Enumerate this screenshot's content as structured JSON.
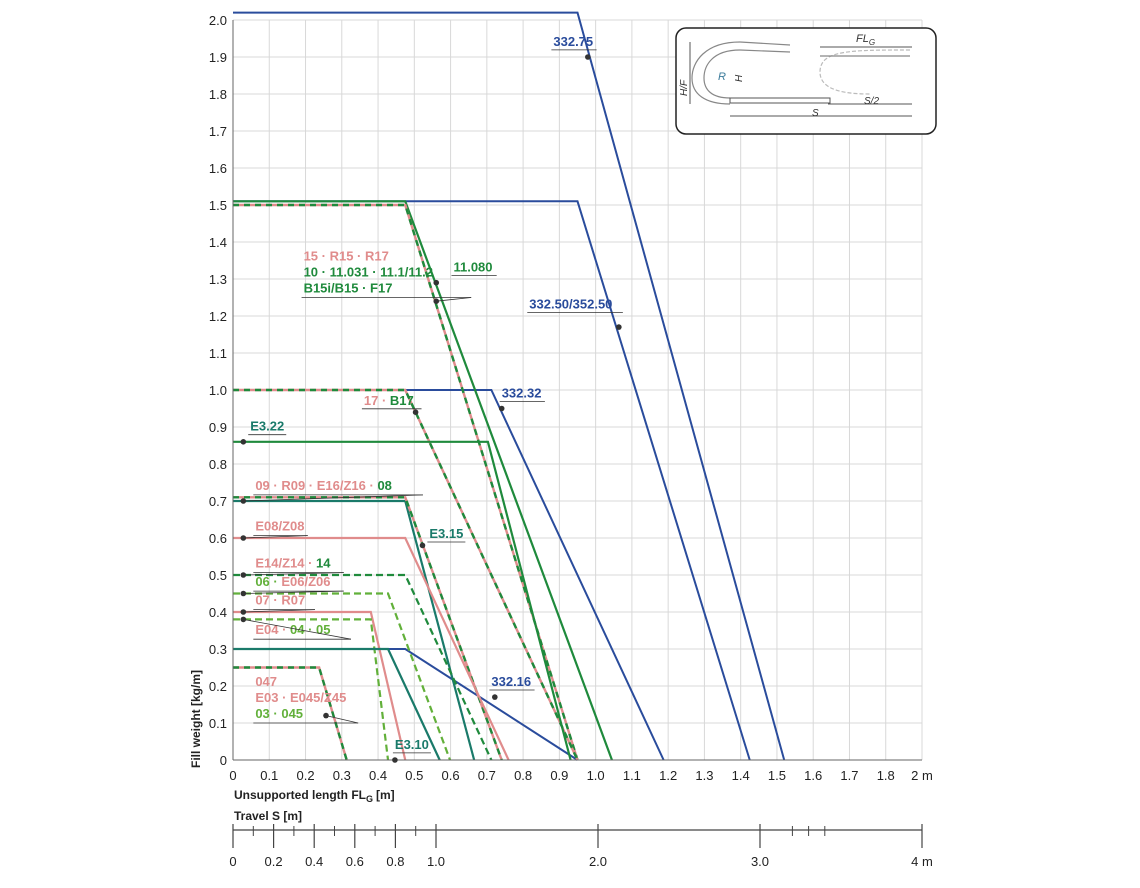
{
  "chart_data": {
    "type": "line",
    "ylabel": "Fill weight [kg/m]",
    "xlabel": "Unsupported length FL",
    "xlabel_subscript": "G",
    "xlabel_unit": "[m]",
    "xlim": [
      0,
      2
    ],
    "ylim": [
      0,
      2
    ],
    "x_ticks": [
      "0",
      "0.1",
      "0.2",
      "0.3",
      "0.4",
      "0.5",
      "0.6",
      "0.7",
      "0.8",
      "0.9",
      "1.0",
      "1.1",
      "1.2",
      "1.3",
      "1.4",
      "1.5",
      "1.6",
      "1.7",
      "1.8",
      "2 m"
    ],
    "y_ticks": [
      "0",
      "0.1",
      "0.2",
      "0.3",
      "0.4",
      "0.5",
      "0.6",
      "0.7",
      "0.8",
      "0.9",
      "1.0",
      "1.1",
      "1.2",
      "1.3",
      "1.4",
      "1.5",
      "1.6",
      "1.7",
      "1.8",
      "1.9",
      "2.0"
    ],
    "travel_axis": {
      "label": "Travel S [m]",
      "ticks": [
        {
          "label": "0",
          "value": 0
        },
        {
          "label": "0.2",
          "value": 0.2
        },
        {
          "label": "0.4",
          "value": 0.4
        },
        {
          "label": "0.6",
          "value": 0.6
        },
        {
          "label": "0.8",
          "value": 0.8
        },
        {
          "label": "1.0",
          "value": 1.0
        },
        {
          "label": "2.0",
          "value": 2.0
        },
        {
          "label": "3.0",
          "value": 3.0
        },
        {
          "label": "4 m",
          "value": 4.0
        }
      ],
      "minor_ticks": [
        0.1,
        0.3,
        0.5,
        0.7,
        0.9,
        3.2,
        3.3,
        3.4
      ]
    },
    "colors": {
      "blue": "#2a4c9c",
      "green": "#1f8a3c",
      "lightgreen": "#62b03a",
      "pink": "#e08c8c",
      "teal": "#1a7a6a"
    },
    "series": [
      {
        "name": "332.75",
        "color": "blue",
        "style": "solid",
        "points": [
          [
            0,
            2.02
          ],
          [
            1.0,
            2.02
          ],
          [
            1.6,
            0
          ]
        ]
      },
      {
        "name": "332.50/352.50",
        "color": "blue",
        "style": "solid",
        "points": [
          [
            0,
            1.51
          ],
          [
            1.0,
            1.51
          ],
          [
            1.5,
            0
          ]
        ]
      },
      {
        "name": "332.32",
        "color": "blue",
        "style": "solid",
        "points": [
          [
            0,
            1.0
          ],
          [
            0.75,
            1.0
          ],
          [
            1.25,
            0
          ]
        ]
      },
      {
        "name": "332.16",
        "color": "blue",
        "style": "solid",
        "points": [
          [
            0,
            0.3
          ],
          [
            0.5,
            0.3
          ],
          [
            1.0,
            0
          ]
        ]
      },
      {
        "name": "11.080",
        "color": "green",
        "style": "solid",
        "points": [
          [
            0,
            1.51
          ],
          [
            0.5,
            1.51
          ],
          [
            1.1,
            0
          ]
        ]
      },
      {
        "name": "15 · R15 · R17 / 10 · 11.031 · 11.1/11.2 / B15i/B15 · F17",
        "color": "pinkgreen",
        "style": "dashed",
        "points": [
          [
            0,
            1.5
          ],
          [
            0.5,
            1.5
          ],
          [
            1.0,
            0
          ]
        ]
      },
      {
        "name": "17 · B17",
        "color": "pinkgreen",
        "style": "dashed",
        "points": [
          [
            0,
            1.0
          ],
          [
            0.5,
            1.0
          ],
          [
            1.0,
            0
          ]
        ]
      },
      {
        "name": "E3.22",
        "color": "green",
        "style": "solid",
        "points": [
          [
            0,
            0.86
          ],
          [
            0.74,
            0.86
          ],
          [
            0.98,
            0
          ]
        ]
      },
      {
        "name": "E3.15",
        "color": "teal",
        "style": "solid",
        "points": [
          [
            0,
            0.7
          ],
          [
            0.5,
            0.7
          ],
          [
            0.7,
            0
          ]
        ]
      },
      {
        "name": "09 · R09 · E16/Z16 · 08",
        "color": "pinkgreen",
        "style": "dashed",
        "points": [
          [
            0,
            0.71
          ],
          [
            0.5,
            0.71
          ],
          [
            0.78,
            0
          ]
        ]
      },
      {
        "name": "E08/Z08",
        "color": "pink",
        "style": "solid",
        "points": [
          [
            0,
            0.6
          ],
          [
            0.5,
            0.6
          ],
          [
            0.8,
            0
          ]
        ]
      },
      {
        "name": "E14/Z14 · 14",
        "color": "green",
        "style": "dashed",
        "points": [
          [
            0,
            0.5
          ],
          [
            0.5,
            0.5
          ],
          [
            0.75,
            0
          ]
        ]
      },
      {
        "name": "06 · E06/Z06",
        "color": "lightgreen",
        "style": "dashed",
        "points": [
          [
            0,
            0.45
          ],
          [
            0.45,
            0.45
          ],
          [
            0.63,
            0
          ]
        ]
      },
      {
        "name": "07 · R07",
        "color": "pink",
        "style": "solid",
        "points": [
          [
            0,
            0.4
          ],
          [
            0.4,
            0.4
          ],
          [
            0.5,
            0
          ]
        ]
      },
      {
        "name": "E04 · 04 · 05",
        "color": "lightgreen",
        "style": "dashed",
        "points": [
          [
            0,
            0.38
          ],
          [
            0.4,
            0.38
          ],
          [
            0.45,
            0
          ]
        ]
      },
      {
        "name": "E3.10",
        "color": "teal",
        "style": "solid",
        "points": [
          [
            0,
            0.3
          ],
          [
            0.45,
            0.3
          ],
          [
            0.6,
            0
          ]
        ]
      },
      {
        "name": "047 / E03 · E045/Z45 / 03 · 045",
        "color": "pinkgreen",
        "style": "dashed",
        "points": [
          [
            0,
            0.25
          ],
          [
            0.25,
            0.25
          ],
          [
            0.33,
            0
          ]
        ]
      }
    ],
    "labels": [
      {
        "text": "332.75",
        "color": "blue",
        "x": 0.93,
        "y": 1.93,
        "marker": [
          1.03,
          1.9
        ]
      },
      {
        "text": "332.50/352.50",
        "color": "blue",
        "x": 0.86,
        "y": 1.22,
        "marker": [
          1.12,
          1.17
        ]
      },
      {
        "text": "332.32",
        "color": "blue",
        "x": 0.78,
        "y": 0.98,
        "marker": [
          0.78,
          0.95
        ]
      },
      {
        "text": "332.16",
        "color": "blue",
        "x": 0.75,
        "y": 0.2,
        "marker": [
          0.76,
          0.17
        ]
      },
      {
        "text": "11.080",
        "color": "green",
        "x": 0.64,
        "y": 1.32,
        "marker": [
          0.59,
          1.29
        ]
      },
      {
        "text": "17 · B17",
        "color": "pinkgreen2",
        "x": 0.38,
        "y": 0.96,
        "marker": [
          0.53,
          0.94
        ]
      },
      {
        "text": "E3.22",
        "color": "teal",
        "x": 0.05,
        "y": 0.89,
        "marker": [
          0.03,
          0.86
        ]
      },
      {
        "text": "E3.15",
        "color": "teal",
        "x": 0.57,
        "y": 0.6,
        "marker": [
          0.55,
          0.58
        ]
      },
      {
        "text": "E3.10",
        "color": "teal",
        "x": 0.47,
        "y": 0.03,
        "marker": [
          0.47,
          0.0
        ]
      }
    ],
    "multi_labels": [
      {
        "x": 0.17,
        "y": 1.35,
        "lines": [
          {
            "text": "15 · R15 · R17",
            "color": "pink"
          },
          {
            "text": "10 · 11.031 · 11.1/11.2",
            "color": "green"
          },
          {
            "text": "B15i/B15 · F17",
            "color": "green"
          }
        ],
        "marker": [
          0.59,
          1.24
        ]
      },
      {
        "x": 0.03,
        "y": 0.73,
        "lines": [
          {
            "text": "09 · R09 · E16/Z16 · ",
            "color": "pink",
            "suffix": "08",
            "suffix_color": "green"
          }
        ],
        "marker": [
          0.03,
          0.7
        ]
      },
      {
        "x": 0.03,
        "y": 0.62,
        "lines": [
          {
            "text": "E08/Z08",
            "color": "pink"
          }
        ],
        "marker": [
          0.03,
          0.6
        ]
      },
      {
        "x": 0.03,
        "y": 0.52,
        "lines": [
          {
            "text": "E14/Z14 · ",
            "color": "pink",
            "suffix": "14",
            "suffix_color": "green"
          }
        ],
        "marker": [
          0.03,
          0.5
        ]
      },
      {
        "x": 0.03,
        "y": 0.47,
        "lines": [
          {
            "text": "06 · ",
            "color": "lightgreen",
            "suffix": "E06/Z06",
            "suffix_color": "pink"
          }
        ],
        "marker": [
          0.03,
          0.45
        ]
      },
      {
        "x": 0.03,
        "y": 0.42,
        "lines": [
          {
            "text": "07 · R07",
            "color": "pink"
          }
        ],
        "marker": [
          0.03,
          0.4
        ]
      },
      {
        "x": 0.03,
        "y": 0.34,
        "lines": [
          {
            "text": "E04 · ",
            "color": "pink",
            "suffix": "04 · 05",
            "suffix_color": "lightgreen"
          }
        ],
        "marker": [
          0.03,
          0.38
        ]
      },
      {
        "x": 0.03,
        "y": 0.2,
        "lines": [
          {
            "text": "047",
            "color": "pink"
          },
          {
            "text": "E03 · E045/Z45",
            "color": "pink"
          },
          {
            "text": "03 · 045",
            "color": "lightgreen"
          }
        ],
        "marker": [
          0.27,
          0.12
        ]
      }
    ],
    "inset": {
      "labels": [
        "FL",
        "G",
        "H/F",
        "R",
        "H",
        "S",
        "S/2"
      ]
    }
  }
}
